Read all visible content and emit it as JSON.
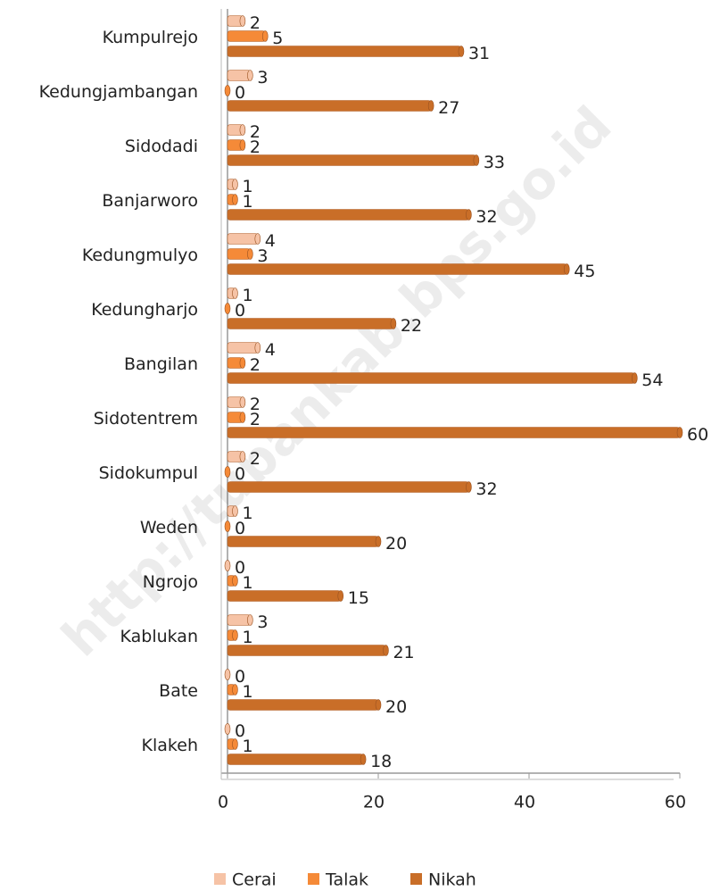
{
  "chart_data": {
    "type": "bar",
    "orientation": "horizontal",
    "categories": [
      "Kumpulrejo",
      "Kedungjambangan",
      "Sidodadi",
      "Banjarworo",
      "Kedungmulyo",
      "Kedungharjo",
      "Bangilan",
      "Sidotentrem",
      "Sidokumpul",
      "Weden",
      "Ngrojo",
      "Kablukan",
      "Bate",
      "Klakeh"
    ],
    "series": [
      {
        "name": "Cerai",
        "color": "#f6c3a6",
        "values": [
          2,
          3,
          2,
          1,
          4,
          1,
          4,
          2,
          2,
          1,
          0,
          3,
          0,
          0
        ]
      },
      {
        "name": "Talak",
        "color": "#f58a38",
        "values": [
          5,
          0,
          2,
          1,
          3,
          0,
          2,
          2,
          0,
          0,
          1,
          1,
          1,
          1
        ]
      },
      {
        "name": "Nikah",
        "color": "#c96e28",
        "values": [
          31,
          27,
          33,
          32,
          45,
          22,
          54,
          60,
          32,
          20,
          15,
          21,
          20,
          18
        ]
      }
    ],
    "xlim": [
      0,
      60
    ],
    "xticks": [
      0,
      20,
      40,
      60
    ],
    "legend": "bottom",
    "watermark": "http://tubankab.bps.go.id"
  }
}
